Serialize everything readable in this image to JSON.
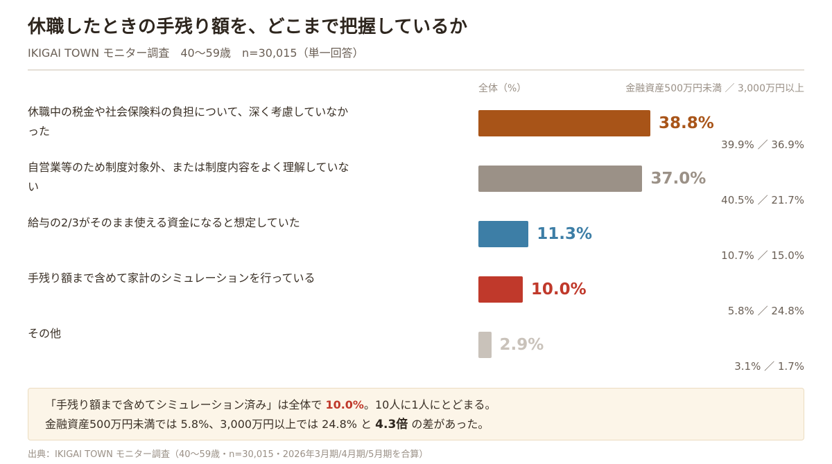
{
  "title": "休職したときの手残り額を、どこまで把握しているか",
  "subtitle": "IKIGAI TOWN モニター調査　40〜59歳　n=30,015（単一回答）",
  "chart_data": {
    "type": "bar",
    "orientation": "horizontal",
    "column_header_all": "全体（%）",
    "column_header_segments": "金融資産500万円未満 ／ 3,000万円以上",
    "xlim": [
      0,
      40
    ],
    "grid": false,
    "categories": [
      "休職中の税金や社会保険料の負担について、深く考慮していなかった",
      "自営業等のため制度対象外、または制度内容をよく理解していない",
      "給与の2/3がそのまま使える資金になると想定していた",
      "手残り額まで含めて家計のシミュレーションを行っている",
      "その他"
    ],
    "values": [
      38.8,
      37.0,
      11.3,
      10.0,
      2.9
    ],
    "value_labels": [
      "38.8%",
      "37.0%",
      "11.3%",
      "10.0%",
      "2.9%"
    ],
    "segment_labels": [
      "39.9% ／ 36.9%",
      "40.5% ／ 21.7%",
      "10.7% ／ 15.0%",
      "5.8% ／ 24.8%",
      "3.1% ／ 1.7%"
    ],
    "segments": [
      {
        "values": [
          39.9,
          40.5,
          10.7,
          5.8,
          3.1
        ]
      },
      {
        "values": [
          36.9,
          21.7,
          15.0,
          24.8,
          1.7
        ]
      }
    ],
    "colors": [
      "#a85418",
      "#9b9187",
      "#3d7ea6",
      "#c0392b",
      "#c9c2ba"
    ]
  },
  "note": {
    "line1_pre": "「手残り額まで含めてシミュレーション済み」は全体で ",
    "line1_hl": "10.0%",
    "line1_post": "。10人に1人にとどまる。",
    "line2_pre": "金融資産500万円未満では 5.8%、3,000万円以上では 24.8% と ",
    "line2_hl": "4.3倍",
    "line2_post": " の差があった。"
  },
  "source": "出典：IKIGAI TOWN モニター調査（40〜59歳・n=30,015・2026年3月期/4月期/5月期を合算）"
}
